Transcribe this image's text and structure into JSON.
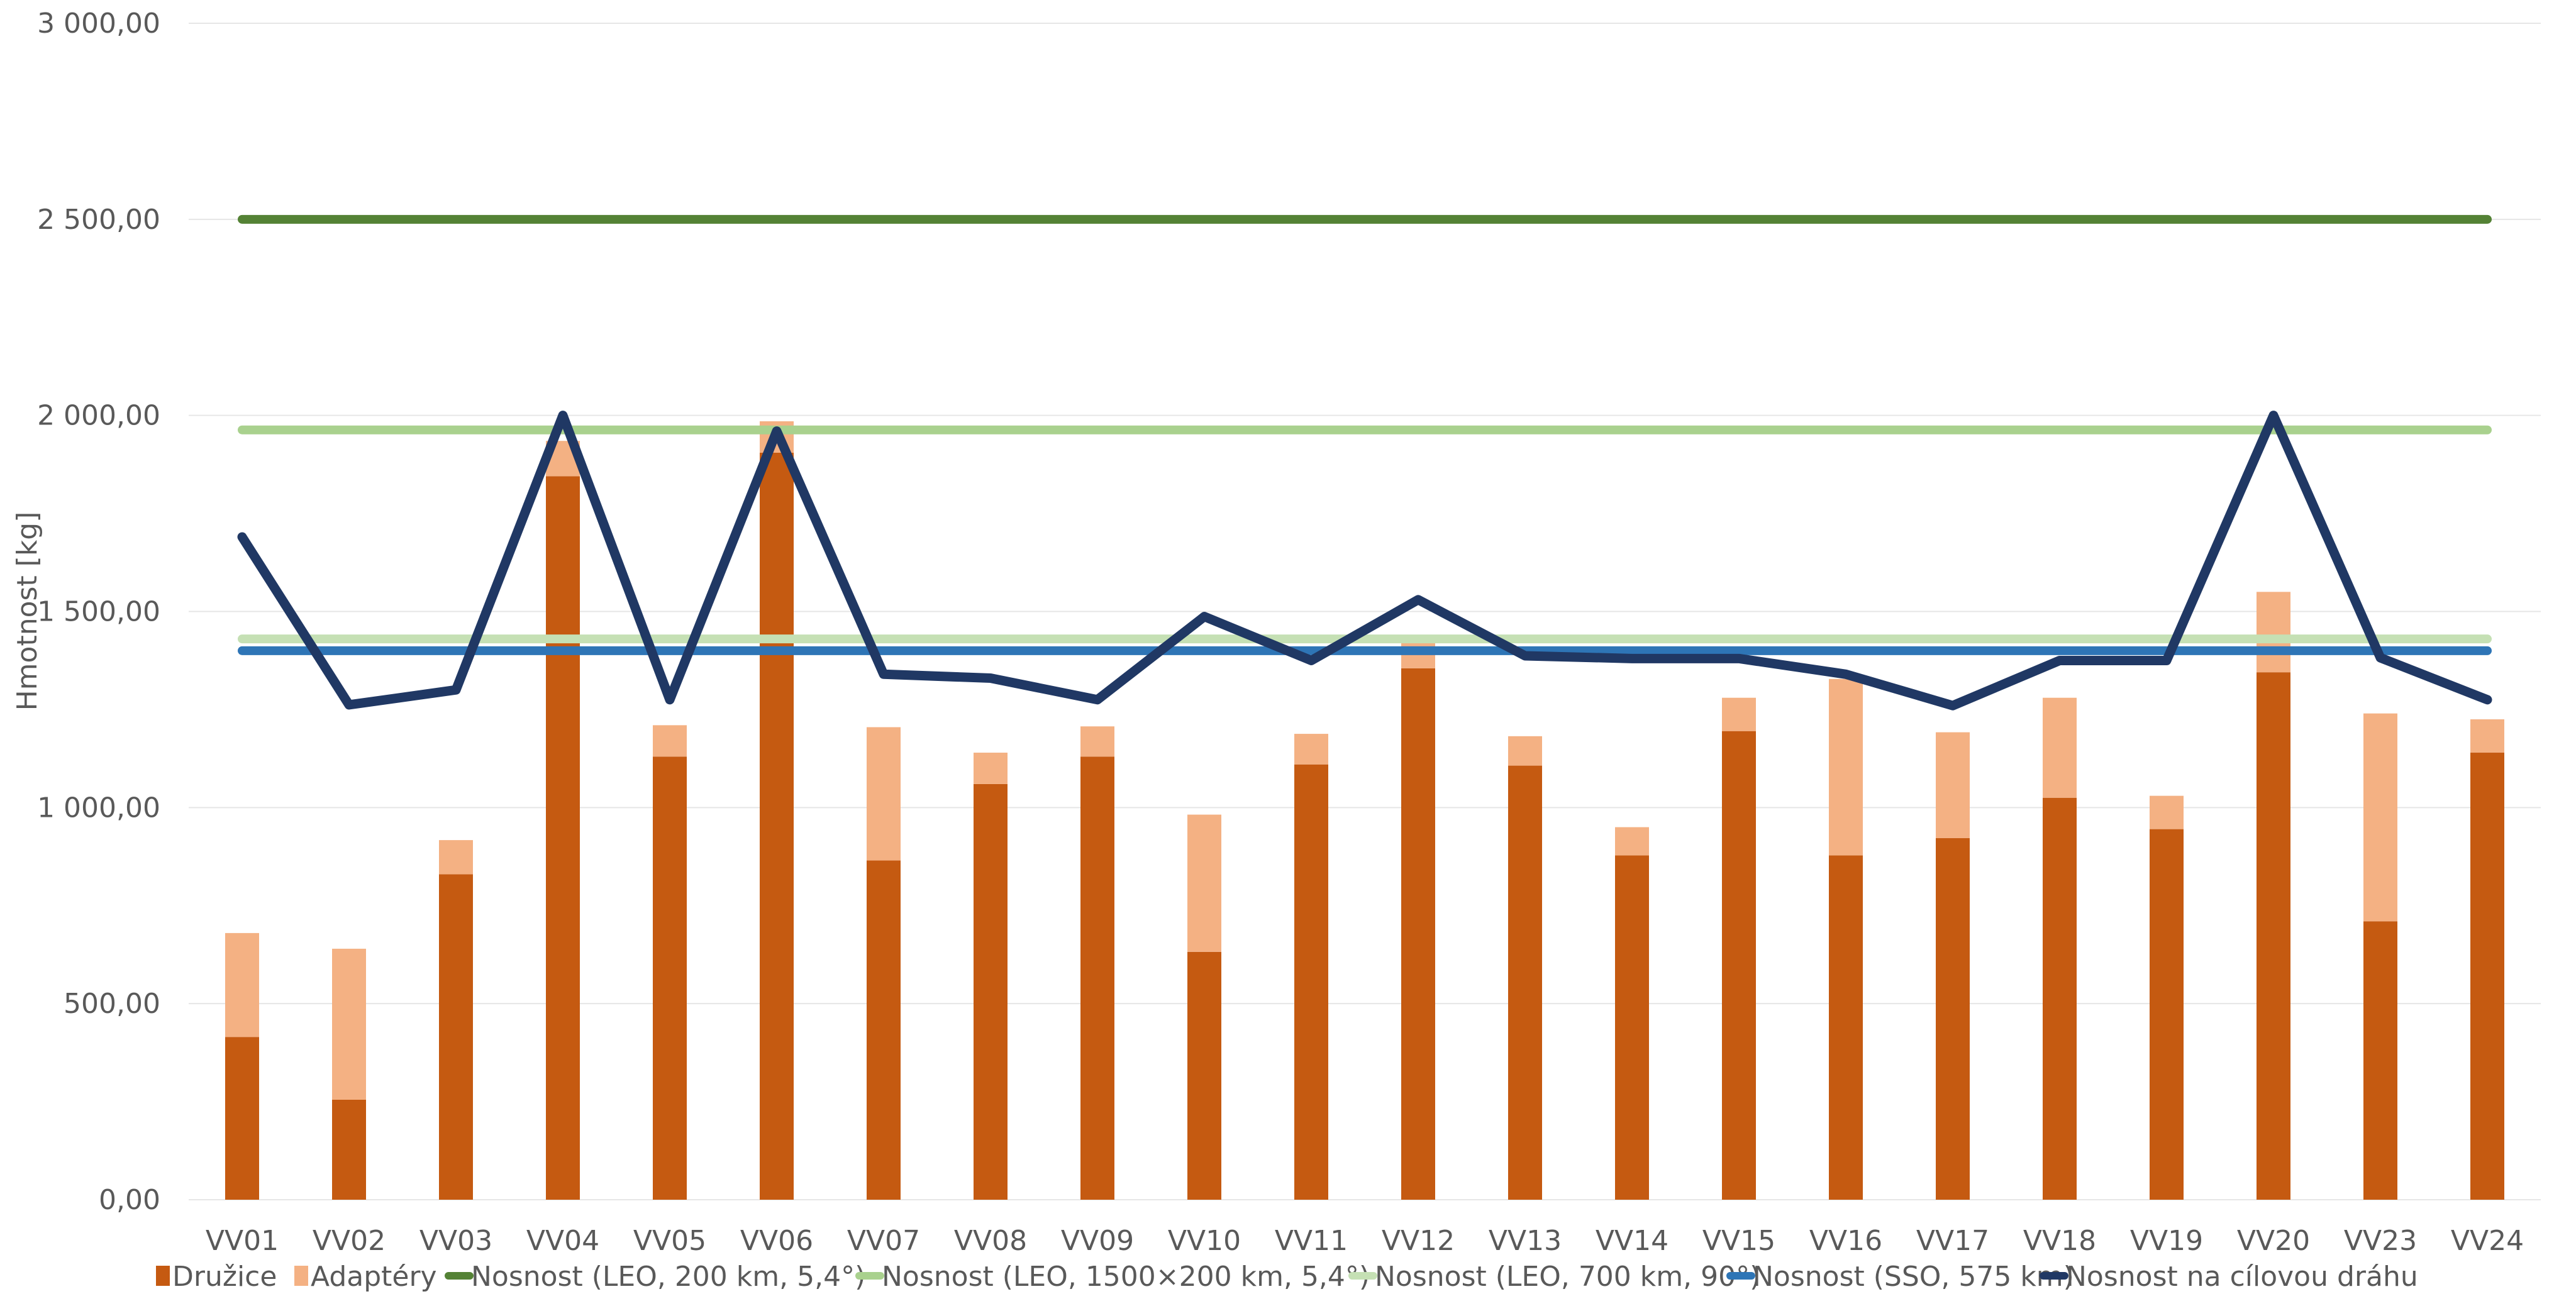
{
  "chart_data": {
    "type": "bar",
    "stacked": true,
    "categories": [
      "VV01",
      "VV02",
      "VV03",
      "VV04",
      "VV05",
      "VV06",
      "VV07",
      "VV08",
      "VV09",
      "VV10",
      "VV11",
      "VV12",
      "VV13",
      "VV14",
      "VV15",
      "VV16",
      "VV17",
      "VV18",
      "VV19",
      "VV20",
      "VV23",
      "VV24"
    ],
    "ylabel": "Hmotnost [kg]",
    "ylim": [
      0,
      3000
    ],
    "yticks": [
      0,
      500,
      1000,
      1500,
      2000,
      2500,
      3000
    ],
    "ytick_labels": [
      "0,00",
      "500,00",
      "1 000,00",
      "1 500,00",
      "2 000,00",
      "2 500,00",
      "3 000,00"
    ],
    "grid": true,
    "legend_position": "bottom",
    "bar_series": [
      {
        "name": "Družice",
        "color": "#C55A11",
        "values": [
          415,
          255,
          830,
          1845,
          1130,
          1905,
          865,
          1060,
          1130,
          632,
          1110,
          1355,
          1107,
          878,
          1195,
          878,
          922,
          1025,
          945,
          1345,
          710,
          1140
        ]
      },
      {
        "name": "Adaptéry",
        "color": "#F4B183",
        "values": [
          265,
          385,
          87,
          90,
          80,
          80,
          340,
          80,
          77,
          350,
          78,
          65,
          75,
          72,
          85,
          450,
          270,
          255,
          85,
          205,
          530,
          85
        ]
      }
    ],
    "line_series": [
      {
        "name": "Nosnost (LEO, 200 km, 5,4°)",
        "color": "#548235",
        "values": [
          2500,
          2500,
          2500,
          2500,
          2500,
          2500,
          2500,
          2500,
          2500,
          2500,
          2500,
          2500,
          2500,
          2500,
          2500,
          2500,
          2500,
          2500,
          2500,
          2500,
          2500,
          2500
        ]
      },
      {
        "name": "Nosnost (LEO, 1500×200 km, 5,4°)",
        "color": "#A9D18E",
        "values": [
          1963,
          1963,
          1963,
          1963,
          1963,
          1963,
          1963,
          1963,
          1963,
          1963,
          1963,
          1963,
          1963,
          1963,
          1963,
          1963,
          1963,
          1963,
          1963,
          1963,
          1963,
          1963
        ]
      },
      {
        "name": "Nosnost (LEO, 700 km, 90°)",
        "color": "#C5E0B4",
        "values": [
          1430,
          1430,
          1430,
          1430,
          1430,
          1430,
          1430,
          1430,
          1430,
          1430,
          1430,
          1430,
          1430,
          1430,
          1430,
          1430,
          1430,
          1430,
          1430,
          1430,
          1430,
          1430
        ]
      },
      {
        "name": "Nosnost (SSO, 575 km)",
        "color": "#2E75B6",
        "values": [
          1400,
          1400,
          1400,
          1400,
          1400,
          1400,
          1400,
          1400,
          1400,
          1400,
          1400,
          1400,
          1400,
          1400,
          1400,
          1400,
          1400,
          1400,
          1400,
          1400,
          1400,
          1400
        ]
      },
      {
        "name": "Nosnost na cílovou dráhu",
        "color": "#203864",
        "values": [
          1690,
          1262,
          1300,
          2000,
          1275,
          1960,
          1340,
          1330,
          1275,
          1487,
          1375,
          1530,
          1387,
          1380,
          1380,
          1340,
          1260,
          1375,
          1375,
          2000,
          1382,
          1275
        ]
      }
    ]
  }
}
